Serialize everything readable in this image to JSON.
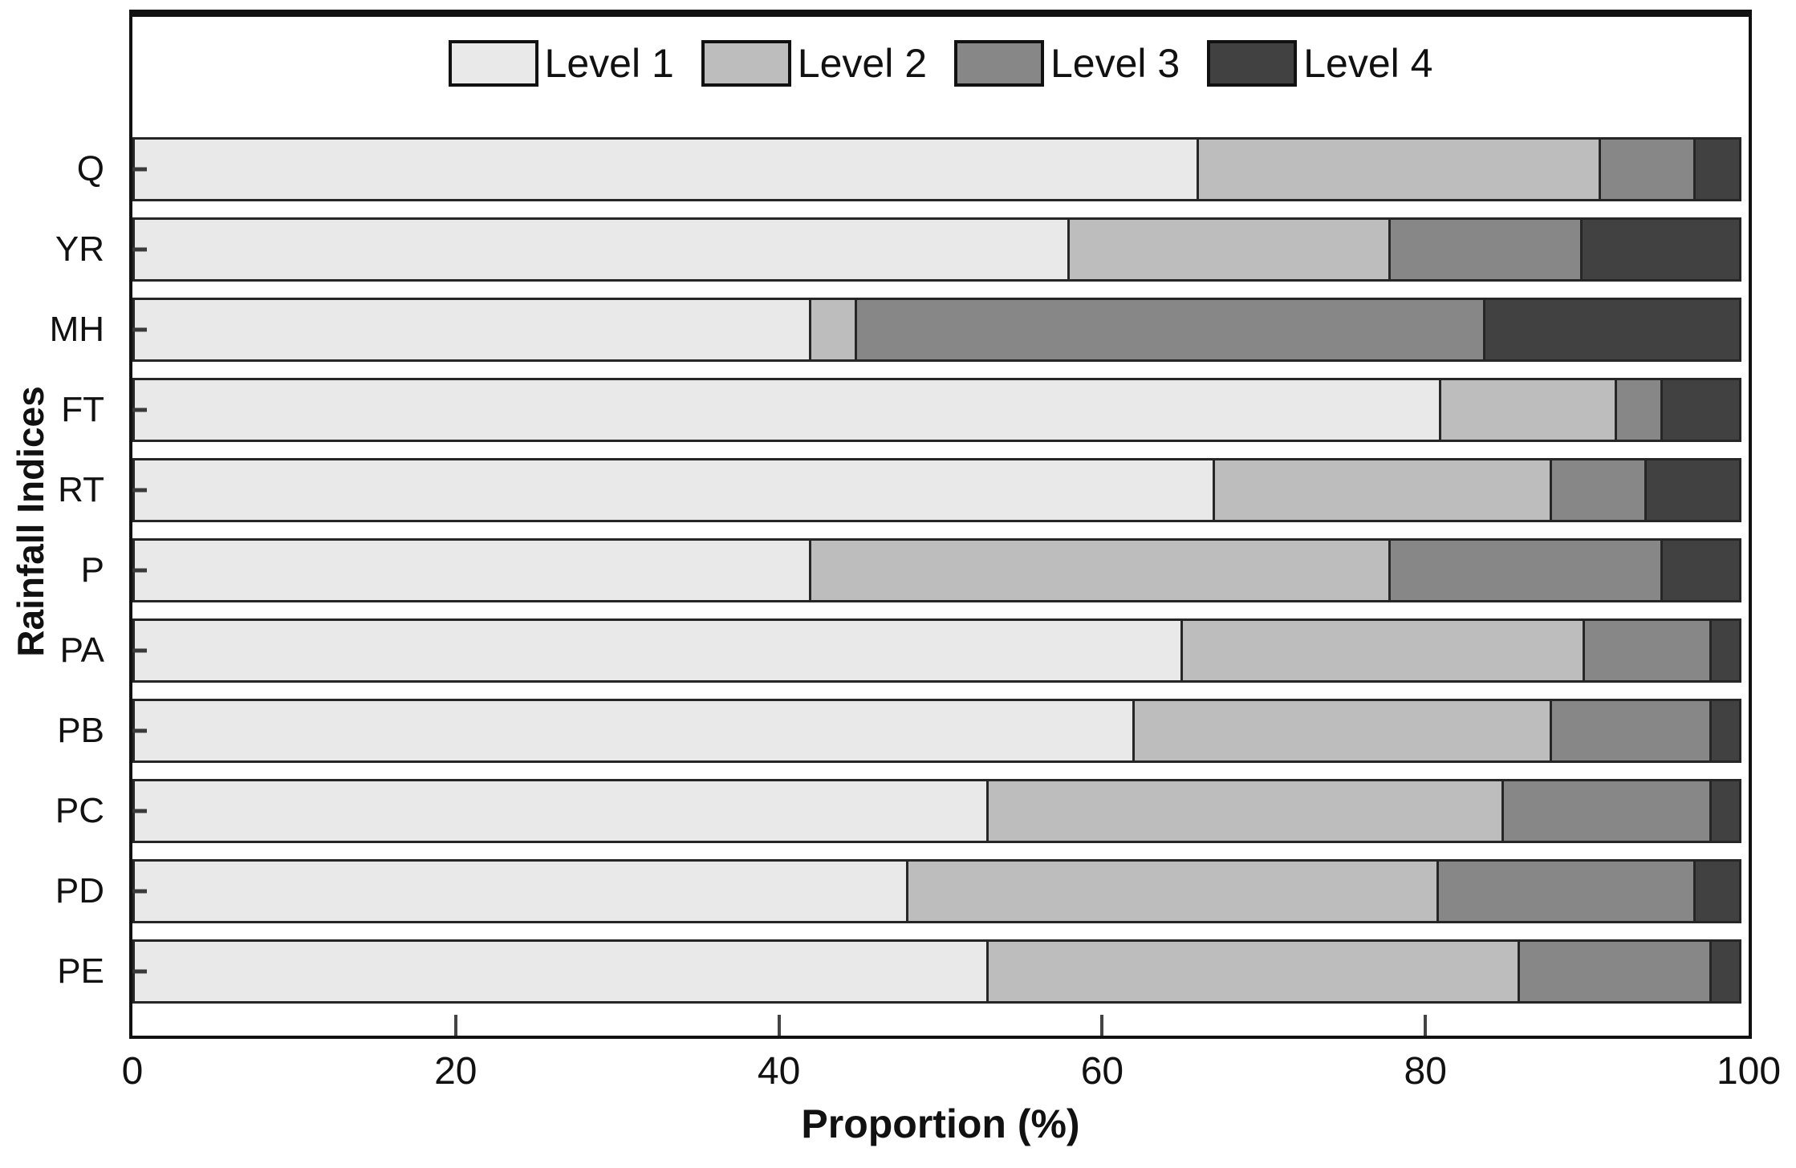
{
  "chart_data": {
    "type": "bar",
    "orientation": "horizontal-stacked",
    "title": "",
    "xlabel": "Proportion (%)",
    "ylabel": "Rainfall Indices",
    "xlim": [
      0,
      100
    ],
    "xticks": [
      0,
      20,
      40,
      60,
      80,
      100
    ],
    "grid": false,
    "legend_position": "top-center-inside",
    "categories": [
      "Q",
      "YR",
      "MH",
      "FT",
      "RT",
      "P",
      "PA",
      "PB",
      "PC",
      "PD",
      "PE"
    ],
    "series": [
      {
        "name": "Level 1",
        "color": "#e9e9e9",
        "values": [
          66,
          58,
          42,
          81,
          67,
          42,
          65,
          62,
          53,
          48,
          53
        ]
      },
      {
        "name": "Level 2",
        "color": "#bdbdbd",
        "values": [
          25,
          20,
          3,
          11,
          21,
          36,
          25,
          26,
          32,
          33,
          33
        ]
      },
      {
        "name": "Level 3",
        "color": "#878787",
        "values": [
          6,
          12,
          39,
          3,
          6,
          17,
          8,
          10,
          13,
          16,
          12
        ]
      },
      {
        "name": "Level 4",
        "color": "#414141",
        "values": [
          3,
          10,
          16,
          5,
          6,
          5,
          2,
          2,
          2,
          3,
          2
        ]
      }
    ]
  },
  "frame_color": "#111111",
  "segment_border_color": "#262626"
}
